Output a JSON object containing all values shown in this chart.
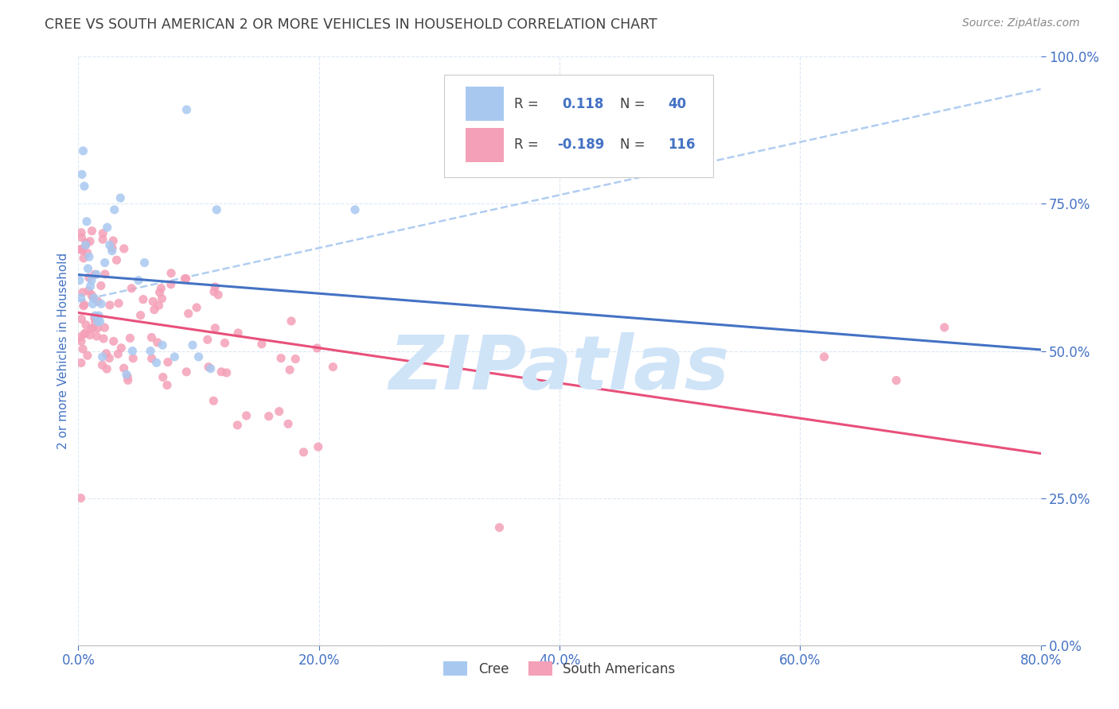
{
  "title": "CREE VS SOUTH AMERICAN 2 OR MORE VEHICLES IN HOUSEHOLD CORRELATION CHART",
  "source": "Source: ZipAtlas.com",
  "ylabel": "2 or more Vehicles in Household",
  "xlim": [
    0.0,
    0.8
  ],
  "ylim": [
    0.0,
    1.0
  ],
  "cree_R": 0.118,
  "cree_N": 40,
  "sa_R": -0.189,
  "sa_N": 116,
  "cree_color": "#a8c8f0",
  "sa_color": "#f4a0b8",
  "cree_line_color": "#4472c4",
  "sa_line_color": "#e8507a",
  "dash_line_color": "#a8c8f0",
  "watermark_text": "ZIPatlas",
  "watermark_color": "#d0e4f8",
  "title_color": "#404040",
  "axis_label_color": "#4472c4",
  "source_color": "#888888",
  "background_color": "#ffffff",
  "grid_color": "#dce8f4",
  "legend_border_color": "#cccccc",
  "legend_text_color": "#404040",
  "legend_val_color": "#4472c4"
}
